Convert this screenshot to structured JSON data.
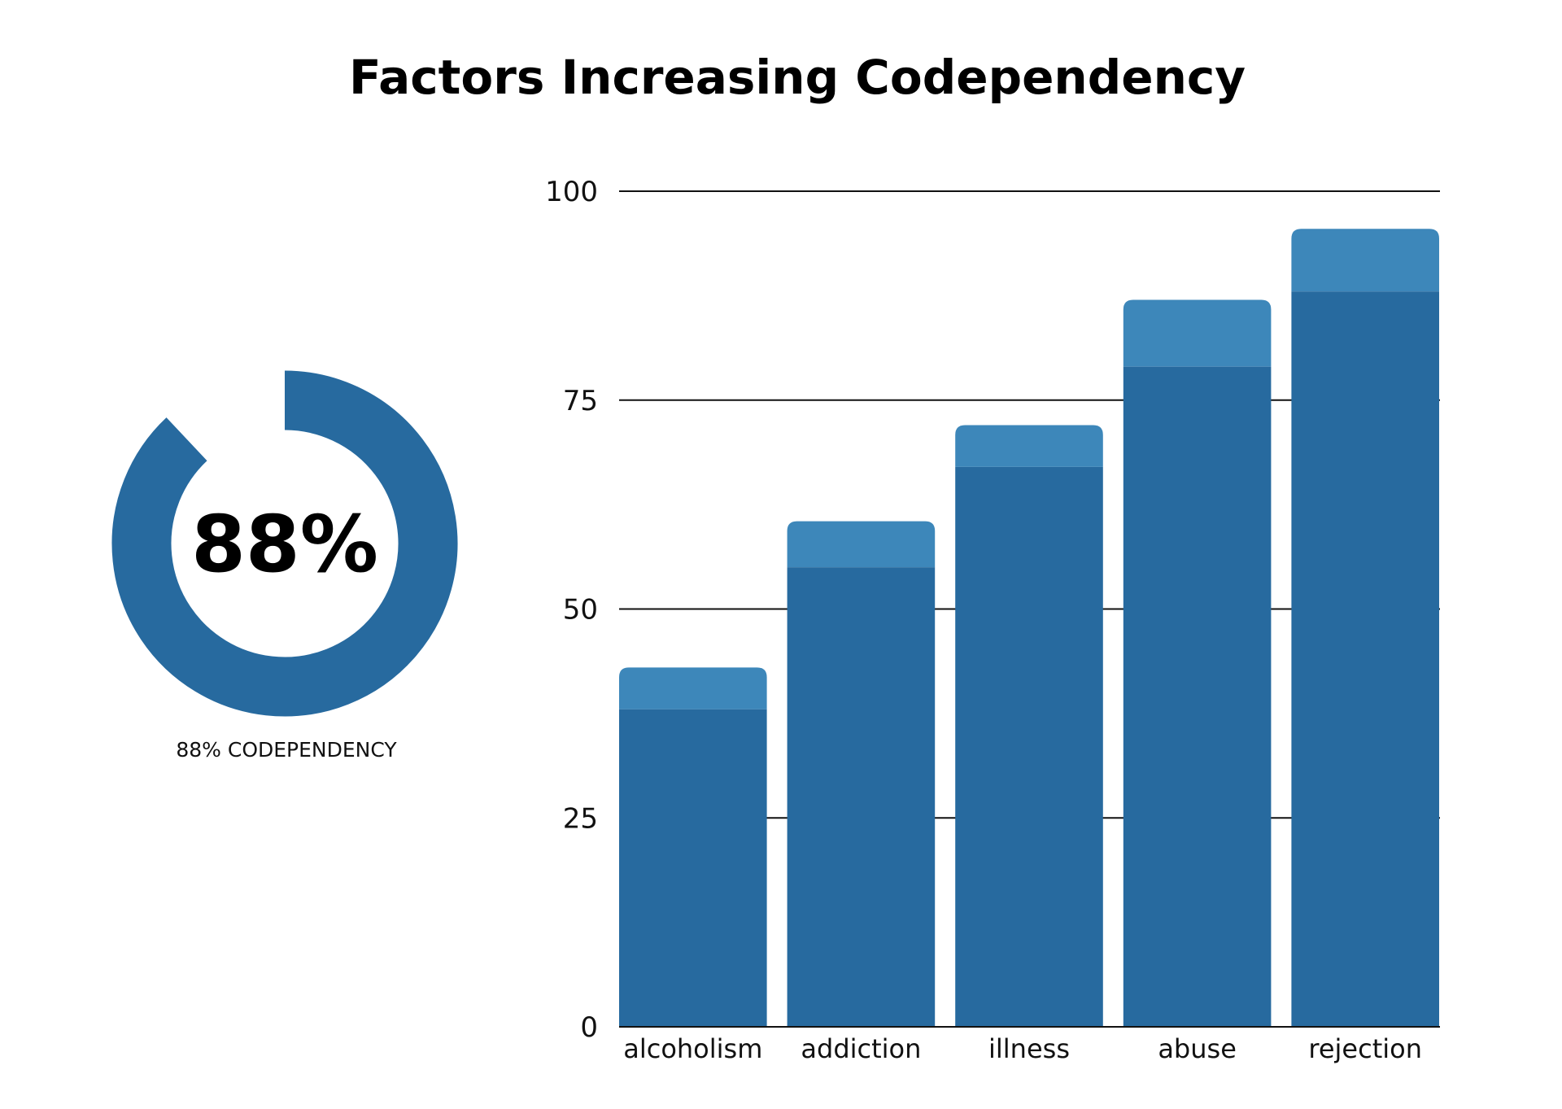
{
  "chart_data": [
    {
      "type": "bar",
      "title": "Factors Increasing Codependency",
      "xlabel": "",
      "ylabel": "",
      "categories": [
        "alcoholism",
        "addiction",
        "illness",
        "abuse",
        "rejection"
      ],
      "series": [
        {
          "values": [
            38,
            55,
            67,
            79,
            88
          ]
        },
        {
          "values": [
            5,
            5.5,
            5,
            8,
            7.5
          ]
        }
      ],
      "totals": [
        43,
        60.5,
        72,
        87,
        95.5
      ],
      "stacked": true,
      "ylim": [
        0,
        100
      ],
      "yticks": [
        0,
        25,
        50,
        75,
        100
      ],
      "grid": true,
      "legend": "none",
      "colors": {
        "base": "#276a9f",
        "top": "#3d87ba"
      }
    },
    {
      "type": "pie",
      "subtype": "donut",
      "value": 88,
      "center_text": "88%",
      "label": "88% CODEPENDENCY",
      "colors": {
        "fill": "#276a9f"
      }
    }
  ]
}
